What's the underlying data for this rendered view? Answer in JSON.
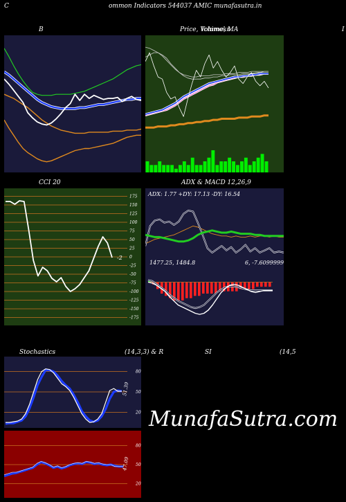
{
  "header": {
    "left_letter": "C",
    "title": "ommon  Indicators 544037 AMIC munafasutra.in"
  },
  "panels": {
    "bb": {
      "title": "B"
    },
    "price": {
      "title": "Price,  Volume,  MA",
      "overlap": "Ichimoku"
    },
    "right_letter": "I",
    "cci": {
      "title": "CCI 20",
      "value_label": "-2"
    },
    "adx": {
      "title": "ADX  & MACD 12,26,9",
      "adx_text": "ADX: 1.77 +DY: 17.13 -DY: 16.54",
      "macd_text_left": "1477.25,  1484.8",
      "macd_text_right": "6,  -7.6099999999999"
    },
    "stoch": {
      "title_left": "Stochastics",
      "title_mid": "(14,3,3) & R",
      "title_rsi": "SI",
      "title_right": "(14,5",
      "value_label": "51.39"
    },
    "rsi": {
      "value_label": "47.09"
    }
  },
  "watermark": "MunafaSutra.com",
  "colors": {
    "navy_bg": "#1a1a3a",
    "green_bg": "#1e3d12",
    "red_bg": "#8b0000",
    "grid_orange": "#c87020",
    "blue_line": "#1c3cff",
    "green_line": "#22cc22",
    "orange_line": "#e08a1e",
    "white_line": "#ffffff",
    "volume_green": "#00ee00"
  },
  "chart_data": [
    {
      "type": "line",
      "name": "bollinger-bands",
      "x": [
        0,
        1,
        2,
        3,
        4,
        5,
        6,
        7,
        8,
        9,
        10,
        11,
        12,
        13,
        14,
        15,
        16,
        17,
        18,
        19,
        20,
        21,
        22,
        23,
        24,
        25,
        26,
        27,
        28,
        29
      ],
      "series": [
        {
          "values": [
            120,
            112,
            103,
            95,
            88,
            82,
            77,
            75,
            74,
            74,
            74,
            75,
            75,
            75,
            75,
            76,
            77,
            78,
            80,
            82,
            84,
            86,
            88,
            90,
            93,
            96,
            99,
            101,
            103,
            104
          ]
        },
        {
          "values": [
            75,
            73,
            71,
            68,
            65,
            62,
            58,
            54,
            50,
            47,
            44,
            42,
            40,
            39,
            38,
            37,
            37,
            37,
            38,
            38,
            38,
            38,
            38,
            39,
            39,
            39,
            40,
            40,
            40,
            41
          ]
        },
        {
          "values": [
            97,
            94,
            90,
            86,
            82,
            78,
            74,
            70,
            67,
            65,
            63,
            62,
            61,
            61,
            61,
            61,
            62,
            62,
            63,
            64,
            65,
            65,
            66,
            67,
            68,
            69,
            70,
            70,
            71,
            71
          ]
        },
        {
          "values": [
            90,
            85,
            79,
            73,
            67,
            57,
            52,
            48,
            46,
            45,
            47,
            51,
            56,
            62,
            66,
            75,
            69,
            75,
            71,
            74,
            72,
            70,
            71,
            71,
            72,
            68,
            71,
            73,
            70,
            69
          ]
        },
        {
          "values": [
            50,
            42,
            35,
            28,
            22,
            18,
            15,
            12,
            10,
            9,
            10,
            12,
            14,
            16,
            18,
            20,
            21,
            22,
            22,
            23,
            24,
            25,
            26,
            27,
            29,
            31,
            33,
            34,
            35,
            35
          ]
        }
      ],
      "ylim": [
        0,
        130
      ]
    },
    {
      "type": "line",
      "name": "price-volume-ma",
      "x": [
        0,
        1,
        2,
        3,
        4,
        5,
        6,
        7,
        8,
        9,
        10,
        11,
        12,
        13,
        14,
        15,
        16,
        17,
        18,
        19,
        20,
        21,
        22,
        23,
        24,
        25,
        26,
        27,
        28,
        29
      ],
      "series": [
        {
          "values": [
            93,
            92,
            90,
            88,
            85,
            81,
            77,
            73,
            70,
            68,
            67,
            66,
            66,
            67,
            67,
            67,
            68,
            68,
            68,
            69,
            69,
            69,
            70,
            70,
            70,
            71,
            71,
            71,
            71,
            71
          ]
        },
        {
          "values": [
            84,
            86,
            88,
            88,
            86,
            83,
            78,
            74,
            70,
            67,
            65,
            64,
            64,
            64,
            65,
            65,
            66,
            66,
            67,
            67,
            68,
            68,
            68,
            69,
            69,
            69,
            70,
            70,
            71,
            71
          ]
        },
        {
          "values": [
            31,
            32,
            33,
            34,
            35,
            36,
            38,
            40,
            43,
            46,
            48,
            50,
            52,
            54,
            56,
            58,
            59,
            61,
            62,
            63,
            64,
            65,
            66,
            66,
            67,
            67,
            68,
            68,
            69,
            69
          ]
        },
        {
          "values": [
            32,
            33,
            34,
            35,
            36,
            38,
            40,
            42,
            45,
            48,
            50,
            52,
            54,
            56,
            58,
            60,
            61,
            62,
            63,
            64,
            65,
            66,
            66,
            67,
            67,
            68,
            68,
            69,
            69,
            69
          ]
        },
        {
          "values": [
            20,
            20,
            20,
            21,
            21,
            21,
            22,
            22,
            23,
            23,
            24,
            24,
            25,
            25,
            26,
            26,
            27,
            27,
            28,
            28,
            28,
            28,
            29,
            29,
            29,
            30,
            30,
            30,
            31,
            31
          ]
        },
        {
          "values": [
            80,
            88,
            76,
            66,
            64,
            52,
            46,
            48,
            38,
            30,
            46,
            60,
            72,
            66,
            78,
            86,
            74,
            80,
            72,
            66,
            70,
            76,
            64,
            60,
            66,
            70,
            62,
            58,
            62,
            56
          ]
        }
      ],
      "volume": [
        3,
        2,
        2,
        3,
        2,
        2,
        2,
        1,
        2,
        3,
        2,
        4,
        2,
        2,
        3,
        4,
        6,
        2,
        3,
        3,
        4,
        3,
        2,
        3,
        4,
        2,
        3,
        4,
        5,
        3
      ],
      "ylim": [
        0,
        100
      ]
    },
    {
      "type": "line",
      "name": "cci-20",
      "x": [
        0,
        1,
        2,
        3,
        4,
        5,
        6,
        7,
        8,
        9,
        10,
        11,
        12,
        13,
        14,
        15,
        16,
        17,
        18,
        19,
        20,
        21,
        22,
        23
      ],
      "series": [
        {
          "values": [
            160,
            160,
            152,
            162,
            160,
            78,
            -10,
            -55,
            -30,
            -40,
            -62,
            -72,
            -60,
            -85,
            -100,
            -92,
            -80,
            -60,
            -40,
            -5,
            30,
            58,
            40,
            -2
          ]
        }
      ],
      "yticks": [
        175,
        150,
        125,
        100,
        75,
        50,
        25,
        0,
        -25,
        -50,
        -75,
        -100,
        -125,
        -150,
        -175
      ],
      "ylim": [
        -180,
        180
      ]
    },
    {
      "type": "line",
      "name": "adx",
      "x": [
        0,
        1,
        2,
        3,
        4,
        5,
        6,
        7,
        8,
        9,
        10,
        11,
        12,
        13,
        14,
        15,
        16,
        17,
        18,
        19,
        20,
        21,
        22,
        23,
        24,
        25,
        26,
        27,
        28,
        29
      ],
      "series": [
        {
          "values": [
            18,
            17,
            16,
            16,
            15,
            14,
            13,
            12,
            12,
            13,
            15,
            18,
            20,
            21,
            22,
            21,
            20,
            20,
            21,
            20,
            19,
            19,
            19,
            18,
            18,
            17,
            17,
            17,
            17,
            17
          ]
        },
        {
          "values": [
            10,
            12,
            14,
            15,
            16,
            17,
            18,
            20,
            22,
            24,
            26,
            25,
            23,
            21,
            19,
            18,
            17,
            17,
            16,
            17,
            16,
            16,
            17,
            16,
            17,
            17,
            16,
            17,
            16,
            16
          ]
        },
        {
          "values": [
            8,
            26,
            31,
            32,
            29,
            30,
            27,
            30,
            37,
            40,
            39,
            29,
            18,
            6,
            2,
            5,
            8,
            4,
            7,
            2,
            5,
            9,
            3,
            6,
            2,
            4,
            6,
            2,
            3,
            2
          ]
        }
      ],
      "ylim": [
        0,
        50
      ]
    },
    {
      "type": "bar",
      "name": "macd",
      "x": [
        0,
        1,
        2,
        3,
        4,
        5,
        6,
        7,
        8,
        9,
        10,
        11,
        12,
        13,
        14,
        15,
        16,
        17,
        18,
        19,
        20,
        21,
        22,
        23,
        24,
        25,
        26,
        27,
        28,
        29
      ],
      "series": [
        {
          "values": [
            2,
            1,
            -2,
            -5,
            -8,
            -12,
            -15,
            -18,
            -20,
            -22,
            -24,
            -25,
            -24,
            -22,
            -18,
            -14,
            -10,
            -7,
            -5,
            -4,
            -4,
            -5,
            -6,
            -7,
            -8,
            -8,
            -8,
            -8,
            -8,
            -8
          ]
        },
        {
          "values": [
            1,
            0,
            -1,
            -3,
            -5,
            -8,
            -11,
            -14,
            -17,
            -20,
            -23,
            -26,
            -28,
            -28,
            -26,
            -22,
            -17,
            -12,
            -8,
            -5,
            -3,
            -3,
            -4,
            -6,
            -8,
            -9,
            -9,
            -8,
            -8,
            -8
          ]
        },
        {
          "values": [
            0,
            -1,
            -3,
            -6,
            -9,
            -14,
            -18,
            -22,
            -24,
            -26,
            -28,
            -30,
            -31,
            -30,
            -27,
            -22,
            -16,
            -10,
            -6,
            -3,
            -2,
            -3,
            -5,
            -7,
            -9,
            -10,
            -9,
            -8,
            -8,
            -8
          ]
        }
      ],
      "histogram": [
        1,
        -1,
        -3,
        -5,
        -6,
        -7,
        -8,
        -8,
        -8,
        -7,
        -7,
        -6,
        -6,
        -5,
        -5,
        -5,
        -5,
        -4,
        -4,
        -4,
        -4,
        -4,
        -3,
        -3,
        -3,
        -3,
        -2,
        -2,
        -2,
        -2
      ],
      "ylim": [
        -35,
        5
      ]
    },
    {
      "type": "line",
      "name": "stochastics",
      "x": [
        0,
        1,
        2,
        3,
        4,
        5,
        6,
        7,
        8,
        9,
        10,
        11,
        12,
        13,
        14,
        15,
        16,
        17,
        18,
        19,
        20,
        21,
        22,
        23,
        24,
        25,
        26,
        27,
        28,
        29
      ],
      "series": [
        {
          "values": [
            5,
            5,
            6,
            7,
            10,
            18,
            32,
            50,
            68,
            80,
            84,
            83,
            78,
            70,
            62,
            58,
            52,
            42,
            30,
            18,
            10,
            5,
            6,
            10,
            18,
            35,
            52,
            55,
            51,
            51
          ]
        },
        {
          "values": [
            3,
            4,
            4,
            6,
            8,
            14,
            26,
            42,
            60,
            72,
            82,
            82,
            80,
            74,
            66,
            60,
            55,
            46,
            35,
            22,
            14,
            8,
            6,
            8,
            14,
            25,
            40,
            50,
            52,
            51
          ]
        }
      ],
      "yticks": [
        80,
        50,
        20
      ],
      "ylim": [
        0,
        100
      ]
    },
    {
      "type": "line",
      "name": "rsi",
      "x": [
        0,
        1,
        2,
        3,
        4,
        5,
        6,
        7,
        8,
        9,
        10,
        11,
        12,
        13,
        14,
        15,
        16,
        17,
        18,
        19,
        20,
        21,
        22,
        23,
        24,
        25,
        26,
        27,
        28,
        29
      ],
      "series": [
        {
          "values": [
            34,
            36,
            38,
            38,
            40,
            42,
            44,
            46,
            52,
            55,
            53,
            50,
            46,
            48,
            45,
            47,
            50,
            52,
            53,
            52,
            55,
            54,
            52,
            53,
            51,
            50,
            50,
            47,
            47,
            47
          ]
        },
        {
          "values": [
            32,
            34,
            36,
            37,
            39,
            41,
            43,
            45,
            50,
            54,
            52,
            49,
            45,
            47,
            44,
            46,
            49,
            51,
            52,
            51,
            54,
            53,
            51,
            52,
            50,
            49,
            50,
            48,
            47,
            47
          ]
        }
      ],
      "yticks": [
        80,
        50,
        20
      ],
      "ylim": [
        0,
        100
      ]
    }
  ]
}
